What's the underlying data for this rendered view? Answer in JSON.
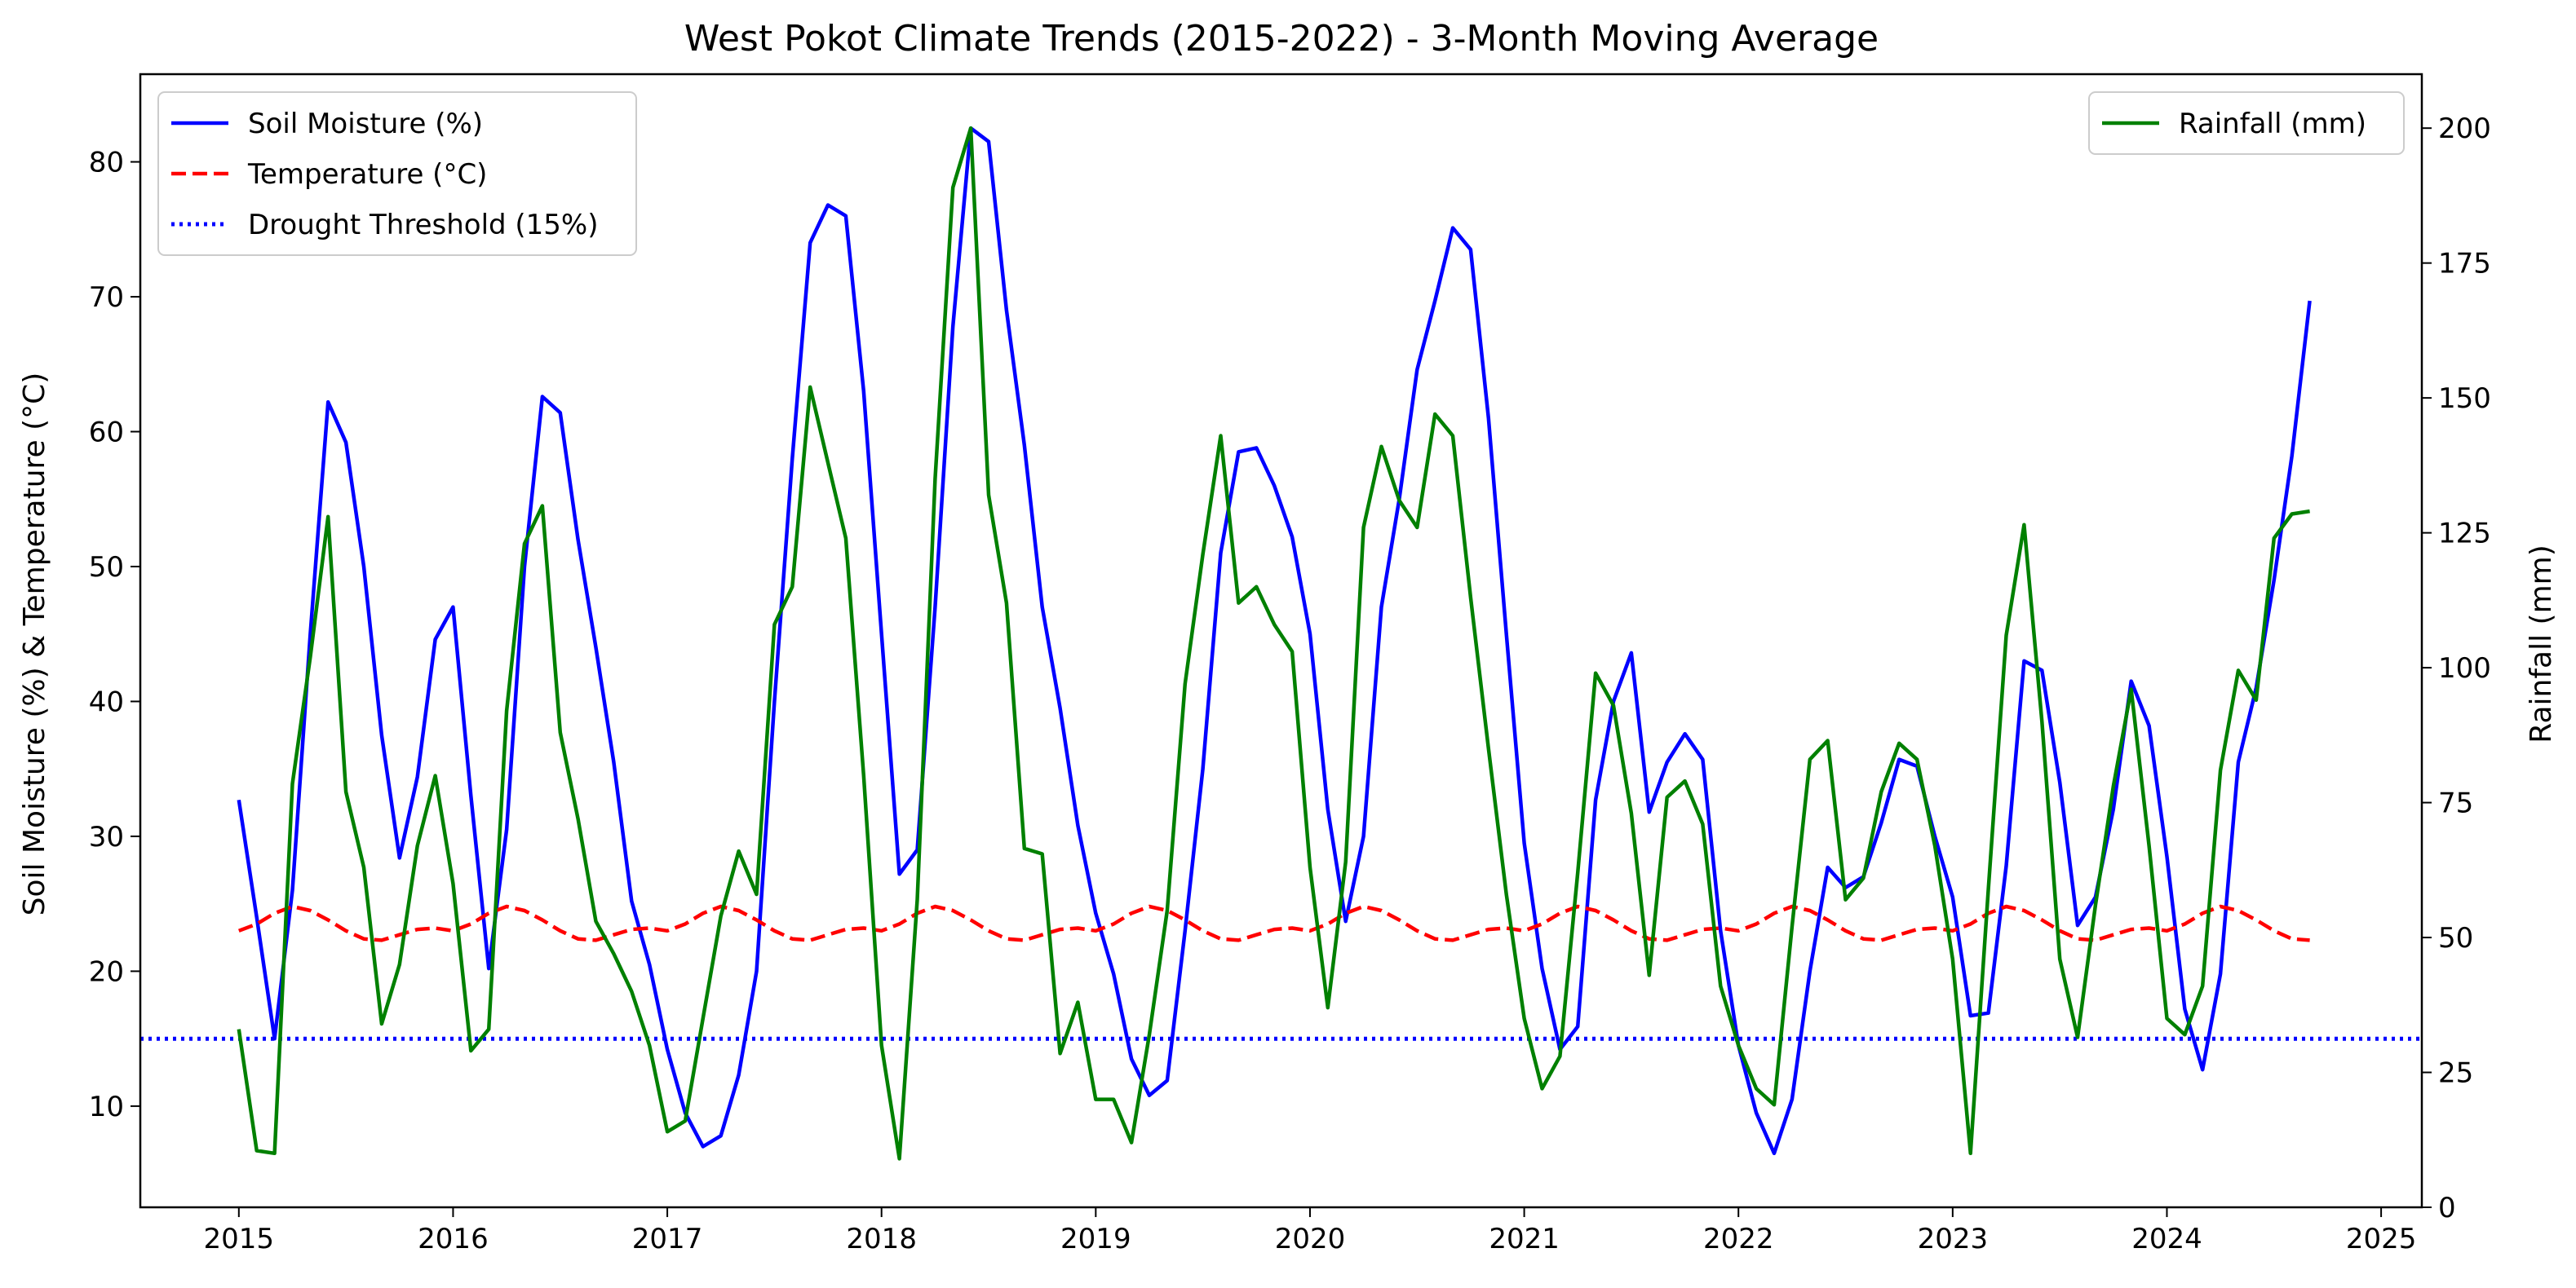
{
  "chart_data": {
    "type": "line",
    "title": "West Pokot Climate Trends (2015-2022) - 3-Month Moving Average",
    "xlabel": "",
    "ylabel_left": "Soil Moisture (%) & Temperature (°C)",
    "ylabel_right": "Rainfall (mm)",
    "x_start": 2015.0,
    "x_step": 0.0833333,
    "xlim": [
      2014.54,
      2025.19
    ],
    "ylim_left": [
      2.5,
      86.5
    ],
    "ylim_right": [
      0,
      210
    ],
    "x_ticks": [
      2015,
      2016,
      2017,
      2018,
      2019,
      2020,
      2021,
      2022,
      2023,
      2024,
      2025
    ],
    "x_tick_labels": [
      "2015",
      "2016",
      "2017",
      "2018",
      "2019",
      "2020",
      "2021",
      "2022",
      "2023",
      "2024",
      "2025"
    ],
    "y_ticks_left": [
      10,
      20,
      30,
      40,
      50,
      60,
      70,
      80
    ],
    "y_tick_labels_left": [
      "10",
      "20",
      "30",
      "40",
      "50",
      "60",
      "70",
      "80"
    ],
    "y_ticks_right": [
      0,
      25,
      50,
      75,
      100,
      125,
      150,
      175,
      200
    ],
    "y_tick_labels_right": [
      "0",
      "25",
      "50",
      "75",
      "100",
      "125",
      "150",
      "175",
      "200"
    ],
    "grid": false,
    "legend_left_placement": "top-left",
    "legend_right_placement": "top-right",
    "series": [
      {
        "name": "Soil Moisture (%)",
        "axis": "left",
        "color": "#0000ff",
        "style": "solid",
        "values": [
          32.7,
          24.0,
          15.0,
          26.0,
          45.0,
          62.2,
          59.2,
          50.0,
          37.5,
          28.4,
          34.4,
          44.6,
          47.0,
          33.0,
          20.2,
          30.5,
          50.0,
          62.6,
          61.4,
          52.0,
          44.0,
          35.5,
          25.2,
          20.5,
          14.2,
          9.5,
          7.0,
          7.8,
          12.3,
          20.0,
          40.0,
          58.0,
          74.0,
          76.8,
          76.0,
          63.0,
          45.0,
          27.2,
          29.0,
          47.0,
          67.8,
          82.5,
          81.5,
          69.0,
          59.0,
          47.0,
          39.5,
          30.8,
          24.3,
          19.8,
          13.5,
          10.8,
          11.9,
          23.0,
          35.0,
          51.0,
          58.5,
          58.8,
          56.0,
          52.2,
          45.0,
          32.0,
          23.7,
          30.0,
          47.0,
          55.0,
          64.6,
          69.7,
          75.1,
          73.5,
          61.0,
          45.0,
          29.5,
          20.2,
          14.2,
          15.9,
          32.7,
          40.0,
          43.6,
          31.8,
          35.5,
          37.6,
          35.7,
          23.0,
          14.5,
          9.5,
          6.5,
          10.5,
          20.0,
          27.7,
          26.2,
          27.0,
          31.0,
          35.7,
          35.2,
          30.0,
          25.5,
          16.7,
          16.9,
          27.8,
          43.0,
          42.3,
          34.0,
          23.4,
          25.5,
          32.0,
          41.5,
          38.2,
          28.5,
          17.2,
          12.7,
          19.8,
          35.5,
          41.0,
          49.0,
          58.2,
          69.7
        ]
      },
      {
        "name": "Temperature (°C)",
        "axis": "left",
        "color": "#ff0000",
        "style": "dashed",
        "values": [
          23.0,
          23.5,
          24.3,
          24.8,
          24.5,
          23.8,
          23.0,
          22.4,
          22.3,
          22.7,
          23.1,
          23.2,
          23.0,
          23.5,
          24.3,
          24.8,
          24.5,
          23.8,
          23.0,
          22.4,
          22.3,
          22.7,
          23.1,
          23.2,
          23.0,
          23.5,
          24.3,
          24.8,
          24.5,
          23.8,
          23.0,
          22.4,
          22.3,
          22.7,
          23.1,
          23.2,
          23.0,
          23.5,
          24.3,
          24.8,
          24.5,
          23.8,
          23.0,
          22.4,
          22.3,
          22.7,
          23.1,
          23.2,
          23.0,
          23.5,
          24.3,
          24.8,
          24.5,
          23.8,
          23.0,
          22.4,
          22.3,
          22.7,
          23.1,
          23.2,
          23.0,
          23.5,
          24.3,
          24.8,
          24.5,
          23.8,
          23.0,
          22.4,
          22.3,
          22.7,
          23.1,
          23.2,
          23.0,
          23.5,
          24.3,
          24.8,
          24.5,
          23.8,
          23.0,
          22.4,
          22.3,
          22.7,
          23.1,
          23.2,
          23.0,
          23.5,
          24.3,
          24.8,
          24.5,
          23.8,
          23.0,
          22.4,
          22.3,
          22.7,
          23.1,
          23.2,
          23.0,
          23.5,
          24.3,
          24.8,
          24.5,
          23.8,
          23.0,
          22.4,
          22.3,
          22.7,
          23.1,
          23.2,
          23.0,
          23.5,
          24.3,
          24.8,
          24.5,
          23.8,
          23.0,
          22.4,
          22.3
        ]
      },
      {
        "name": "Drought Threshold (15%)",
        "axis": "left",
        "color": "#0000ff",
        "style": "dotted",
        "constant": 15
      },
      {
        "name": "Rainfall (mm)",
        "axis": "right",
        "color": "#008000",
        "style": "solid",
        "values": [
          33.0,
          10.5,
          10.0,
          78.5,
          102.0,
          128.0,
          77.0,
          63.0,
          34.0,
          45.0,
          67.0,
          80.0,
          60.0,
          29.0,
          33.0,
          92.0,
          123.0,
          130.0,
          88.0,
          72.0,
          53.0,
          47.0,
          40.0,
          30.0,
          14.0,
          16.0,
          35.0,
          54.0,
          66.0,
          58.0,
          108.0,
          115.0,
          152.0,
          138.0,
          124.0,
          80.0,
          30.0,
          9.0,
          57.0,
          135.0,
          189.0,
          200.0,
          132.0,
          112.0,
          66.5,
          65.5,
          28.5,
          38.0,
          20.0,
          20.0,
          12.0,
          32.0,
          55.0,
          97.0,
          121.0,
          143.0,
          112.0,
          115.0,
          108.0,
          103.0,
          63.0,
          37.0,
          64.0,
          126.0,
          141.0,
          131.0,
          126.0,
          147.0,
          143.0,
          113.0,
          85.0,
          58.0,
          35.0,
          22.0,
          28.0,
          62.0,
          99.0,
          93.0,
          73.0,
          43.0,
          76.0,
          79.0,
          71.0,
          41.0,
          30.0,
          22.0,
          19.0,
          52.0,
          83.0,
          86.5,
          57.0,
          61.0,
          77.0,
          86.0,
          83.0,
          67.0,
          46.0,
          10.0,
          59.0,
          106.0,
          126.5,
          90.0,
          46.0,
          31.5,
          56.0,
          78.0,
          96.0,
          67.0,
          35.0,
          32.0,
          41.0,
          81.0,
          99.5,
          94.0,
          124.0,
          128.5,
          129.0
        ]
      }
    ]
  }
}
